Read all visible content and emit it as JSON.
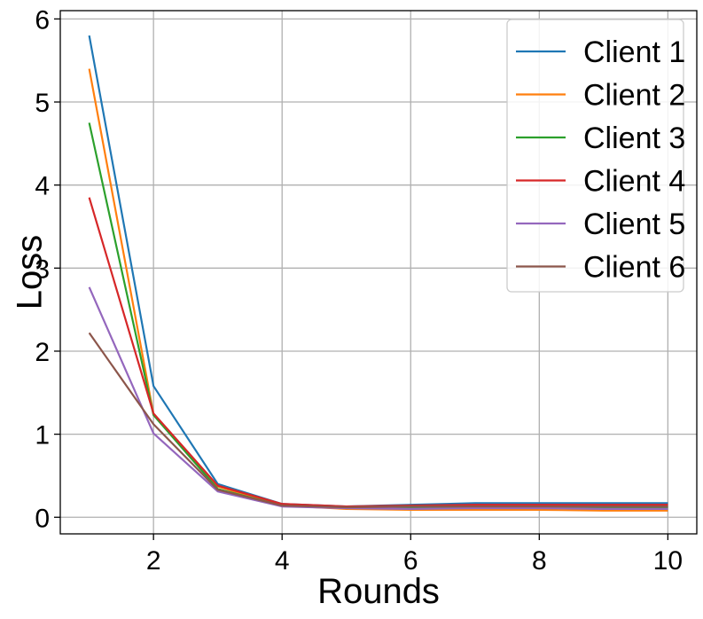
{
  "chart_data": {
    "type": "line",
    "title": "",
    "xlabel": "Rounds",
    "ylabel": "Loss",
    "x": [
      1,
      2,
      3,
      4,
      5,
      6,
      7,
      8,
      9,
      10
    ],
    "xlim": [
      0.55,
      10.45
    ],
    "ylim": [
      -0.2,
      6.1
    ],
    "xticks": [
      2,
      4,
      6,
      8,
      10
    ],
    "yticks": [
      0,
      1,
      2,
      3,
      4,
      5,
      6
    ],
    "grid": true,
    "legend_position": "top-right",
    "series": [
      {
        "name": "Client 1",
        "color": "#1f77b4",
        "values": [
          5.8,
          1.58,
          0.4,
          0.16,
          0.13,
          0.15,
          0.17,
          0.17,
          0.17,
          0.17
        ]
      },
      {
        "name": "Client 2",
        "color": "#ff7f0e",
        "values": [
          5.4,
          1.24,
          0.37,
          0.14,
          0.1,
          0.09,
          0.09,
          0.09,
          0.08,
          0.08
        ]
      },
      {
        "name": "Client 3",
        "color": "#2ca02c",
        "values": [
          4.75,
          1.23,
          0.34,
          0.14,
          0.12,
          0.12,
          0.12,
          0.12,
          0.12,
          0.12
        ]
      },
      {
        "name": "Client 4",
        "color": "#d62728",
        "values": [
          3.85,
          1.25,
          0.38,
          0.16,
          0.13,
          0.14,
          0.15,
          0.15,
          0.15,
          0.15
        ]
      },
      {
        "name": "Client 5",
        "color": "#9467bd",
        "values": [
          2.77,
          1.01,
          0.31,
          0.13,
          0.11,
          0.1,
          0.11,
          0.11,
          0.1,
          0.1
        ]
      },
      {
        "name": "Client 6",
        "color": "#8c564b",
        "values": [
          2.22,
          1.12,
          0.33,
          0.14,
          0.12,
          0.13,
          0.13,
          0.13,
          0.13,
          0.13
        ]
      }
    ]
  }
}
